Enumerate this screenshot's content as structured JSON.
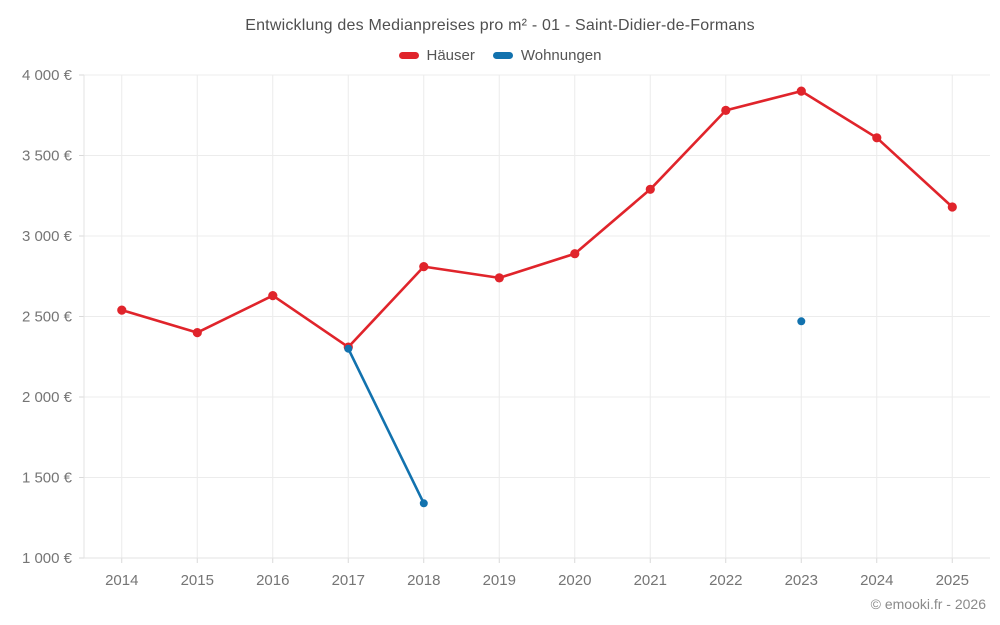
{
  "chart_data": {
    "type": "line",
    "title": "Entwicklung des Medianpreises pro m² - 01 - Saint-Didier-de-Formans",
    "x": [
      2014,
      2015,
      2016,
      2017,
      2018,
      2019,
      2020,
      2021,
      2022,
      2023,
      2024,
      2025
    ],
    "series": [
      {
        "name": "Häuser",
        "color": "#e0242b",
        "values": [
          2540,
          2400,
          2630,
          2310,
          2810,
          2740,
          2890,
          3290,
          3780,
          3900,
          3610,
          3180
        ]
      },
      {
        "name": "Wohnungen",
        "color": "#1272ae",
        "values": [
          null,
          null,
          null,
          2300,
          1340,
          null,
          null,
          null,
          null,
          2470,
          null,
          null
        ]
      }
    ],
    "ylim": [
      1000,
      4000
    ],
    "ytick_step": 500,
    "ytick_labels": [
      "1 000 €",
      "1 500 €",
      "2 000 €",
      "2 500 €",
      "3 000 €",
      "3 500 €",
      "4 000 €"
    ],
    "grid": true,
    "legend_position": "top",
    "footer": "© emooki.fr - 2026"
  }
}
